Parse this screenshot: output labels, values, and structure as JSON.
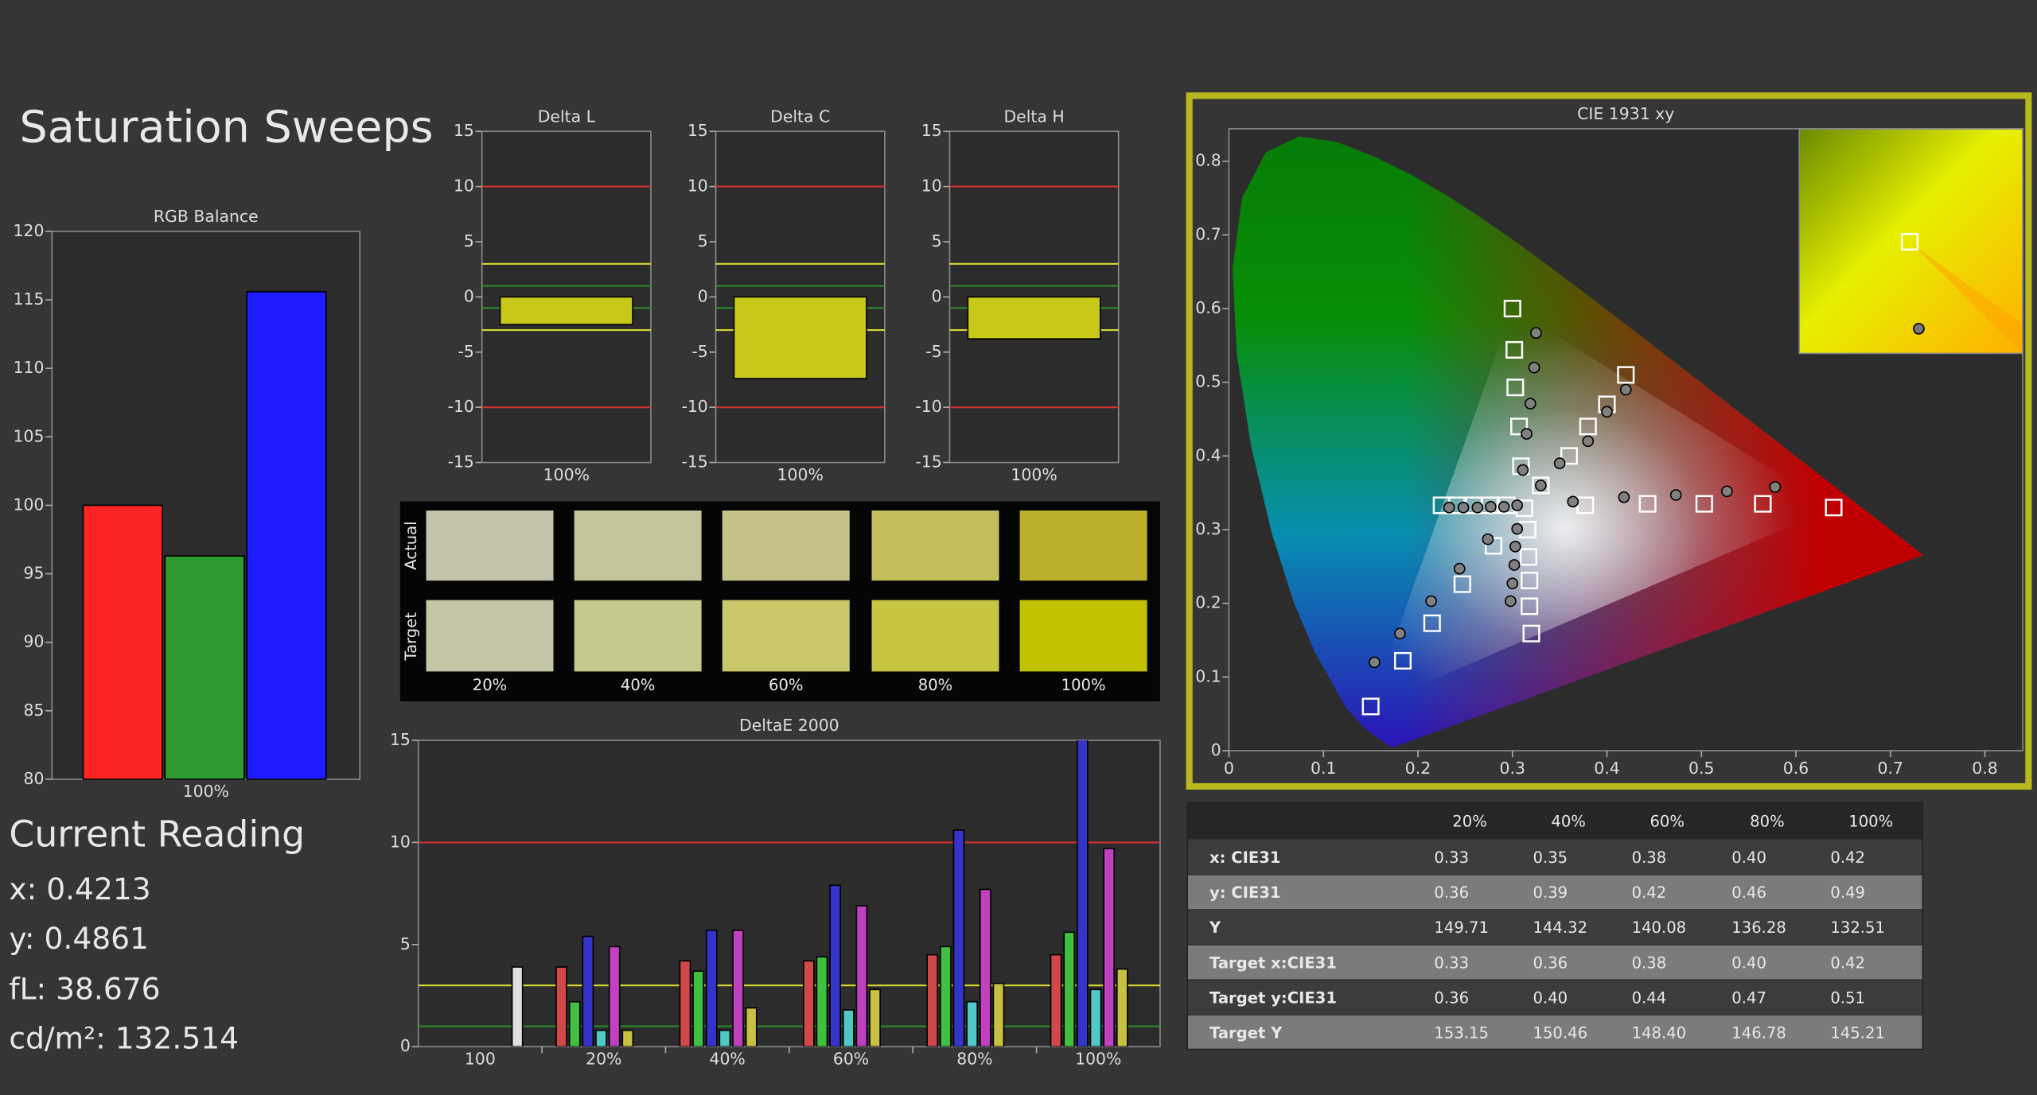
{
  "title": "Saturation Sweeps",
  "current_reading": {
    "title": "Current Reading",
    "lines": [
      "x: 0.4213",
      "y: 0.4861",
      "fL: 38.676",
      "cd/m²: 132.514"
    ]
  },
  "swatches": {
    "row_labels": [
      "Actual",
      "Target"
    ],
    "labels": [
      "20%",
      "40%",
      "60%",
      "80%",
      "100%"
    ],
    "actual_colors": [
      "#c2c3a8",
      "#c4c39a",
      "#c4c286",
      "#c3bd5c",
      "#bcb02a"
    ],
    "target_colors": [
      "#c4c5a7",
      "#c7c78b",
      "#c8c76a",
      "#c6c441",
      "#c2c200"
    ]
  },
  "table": {
    "header": [
      "20%",
      "40%",
      "60%",
      "80%",
      "100%"
    ],
    "rows": [
      [
        "x: CIE31",
        "0.33",
        "0.35",
        "0.38",
        "0.40",
        "0.42"
      ],
      [
        "y: CIE31",
        "0.36",
        "0.39",
        "0.42",
        "0.46",
        "0.49"
      ],
      [
        "Y",
        "149.71",
        "144.32",
        "140.08",
        "136.28",
        "132.51"
      ],
      [
        "Target x:CIE31",
        "0.33",
        "0.36",
        "0.38",
        "0.40",
        "0.42"
      ],
      [
        "Target y:CIE31",
        "0.36",
        "0.40",
        "0.44",
        "0.47",
        "0.51"
      ],
      [
        "Target Y",
        "153.15",
        "150.46",
        "148.40",
        "146.78",
        "145.21"
      ]
    ]
  },
  "chart_data": [
    {
      "type": "bar",
      "title": "RGB Balance",
      "categories": [
        "100%"
      ],
      "series": [
        {
          "color": "#ff2424",
          "values": [
            100
          ]
        },
        {
          "color": "#2f9a2f",
          "values": [
            96.3
          ]
        },
        {
          "color": "#1c1cff",
          "values": [
            115.6
          ]
        }
      ],
      "ylim": [
        80,
        120
      ],
      "yticks": [
        80,
        85,
        90,
        95,
        100,
        105,
        110,
        115,
        120
      ]
    },
    {
      "type": "bar",
      "title": "Delta L",
      "categories": [
        "100%"
      ],
      "values": [
        -2.5
      ],
      "color": "#c8c818",
      "ylim": [
        -15,
        15
      ],
      "yticks": [
        -15,
        -10,
        -5,
        0,
        5,
        10,
        15
      ],
      "reference_lines": [
        {
          "value": 10,
          "color": "#d03030"
        },
        {
          "value": -10,
          "color": "#d03030"
        },
        {
          "value": 3,
          "color": "#d8d830"
        },
        {
          "value": -3,
          "color": "#d8d830"
        },
        {
          "value": 1,
          "color": "#2a8a2a"
        },
        {
          "value": -1,
          "color": "#2a8a2a"
        }
      ]
    },
    {
      "type": "bar",
      "title": "Delta C",
      "categories": [
        "100%"
      ],
      "values": [
        -7.4
      ],
      "color": "#c8c818",
      "ylim": [
        -15,
        15
      ],
      "yticks": [
        -15,
        -10,
        -5,
        0,
        5,
        10,
        15
      ],
      "reference_lines": [
        {
          "value": 10,
          "color": "#d03030"
        },
        {
          "value": -10,
          "color": "#d03030"
        },
        {
          "value": 3,
          "color": "#d8d830"
        },
        {
          "value": -3,
          "color": "#d8d830"
        },
        {
          "value": 1,
          "color": "#2a8a2a"
        },
        {
          "value": -1,
          "color": "#2a8a2a"
        }
      ]
    },
    {
      "type": "bar",
      "title": "Delta H",
      "categories": [
        "100%"
      ],
      "values": [
        -3.8
      ],
      "color": "#c8c818",
      "ylim": [
        -15,
        15
      ],
      "yticks": [
        -15,
        -10,
        -5,
        0,
        5,
        10,
        15
      ],
      "reference_lines": [
        {
          "value": 10,
          "color": "#d03030"
        },
        {
          "value": -10,
          "color": "#d03030"
        },
        {
          "value": 3,
          "color": "#d8d830"
        },
        {
          "value": -3,
          "color": "#d8d830"
        },
        {
          "value": 1,
          "color": "#2a8a2a"
        },
        {
          "value": -1,
          "color": "#2a8a2a"
        }
      ]
    },
    {
      "type": "bar",
      "title": "DeltaE 2000",
      "categories": [
        "100",
        "20%",
        "40%",
        "60%",
        "80%",
        "100%"
      ],
      "series": [
        {
          "color": "#d04848",
          "values": [
            null,
            3.9,
            4.2,
            4.2,
            4.5,
            4.5
          ]
        },
        {
          "color": "#40c040",
          "values": [
            null,
            2.2,
            3.7,
            4.4,
            4.9,
            5.6
          ]
        },
        {
          "color": "#3434c8",
          "values": [
            null,
            5.4,
            5.7,
            7.9,
            10.6,
            15.6
          ]
        },
        {
          "color": "#50c8c8",
          "values": [
            null,
            0.8,
            0.8,
            1.8,
            2.2,
            2.8
          ]
        },
        {
          "color": "#c040c0",
          "values": [
            null,
            4.9,
            5.7,
            6.9,
            7.7,
            9.7
          ]
        },
        {
          "color": "#c8c040",
          "values": [
            null,
            0.8,
            1.9,
            2.8,
            3.1,
            3.8
          ]
        },
        {
          "color": "#e0e0e0",
          "values": [
            3.9,
            null,
            null,
            null,
            null,
            null
          ]
        }
      ],
      "ylim": [
        0,
        15
      ],
      "yticks": [
        0,
        5,
        10,
        15
      ],
      "reference_lines": [
        {
          "value": 10,
          "color": "#d03030"
        },
        {
          "value": 3,
          "color": "#d8d830"
        },
        {
          "value": 1,
          "color": "#2a8a2a"
        }
      ]
    },
    {
      "type": "scatter",
      "title": "CIE 1931 xy",
      "xlim": [
        0,
        0.84
      ],
      "ylim": [
        0,
        0.844
      ],
      "xticks": [
        0,
        0.1,
        0.2,
        0.3,
        0.4,
        0.5,
        0.6,
        0.7,
        0.8
      ],
      "yticks": [
        0,
        0.1,
        0.2,
        0.3,
        0.4,
        0.5,
        0.6,
        0.7,
        0.8
      ],
      "series": [
        {
          "marker": "square",
          "color": "#ffffff",
          "x": [
            0.377,
            0.443,
            0.503,
            0.565,
            0.64,
            0.309,
            0.307,
            0.303,
            0.302,
            0.3,
            0.28,
            0.247,
            0.215,
            0.184,
            0.15,
            0.294,
            0.276,
            0.259,
            0.241,
            0.225,
            0.316,
            0.317,
            0.318,
            0.318,
            0.32,
            0.33,
            0.36,
            0.38,
            0.4,
            0.42,
            0.3127
          ],
          "y": [
            0.333,
            0.335,
            0.335,
            0.335,
            0.33,
            0.386,
            0.44,
            0.493,
            0.544,
            0.6,
            0.278,
            0.226,
            0.173,
            0.122,
            0.06,
            0.333,
            0.333,
            0.333,
            0.333,
            0.333,
            0.3,
            0.263,
            0.231,
            0.196,
            0.159,
            0.36,
            0.4,
            0.44,
            0.47,
            0.51,
            0.329
          ]
        },
        {
          "marker": "circle",
          "color": "#808080",
          "x": [
            0.364,
            0.418,
            0.473,
            0.527,
            0.578,
            0.311,
            0.315,
            0.319,
            0.323,
            0.325,
            0.274,
            0.244,
            0.214,
            0.181,
            0.154,
            0.291,
            0.277,
            0.263,
            0.248,
            0.233,
            0.305,
            0.303,
            0.302,
            0.3,
            0.298,
            0.33,
            0.35,
            0.38,
            0.4,
            0.42,
            0.305
          ],
          "y": [
            0.338,
            0.344,
            0.347,
            0.352,
            0.358,
            0.381,
            0.43,
            0.471,
            0.52,
            0.567,
            0.287,
            0.247,
            0.203,
            0.159,
            0.12,
            0.331,
            0.331,
            0.33,
            0.33,
            0.33,
            0.301,
            0.277,
            0.252,
            0.227,
            0.203,
            0.36,
            0.39,
            0.42,
            0.46,
            0.49,
            0.333
          ]
        }
      ]
    }
  ]
}
